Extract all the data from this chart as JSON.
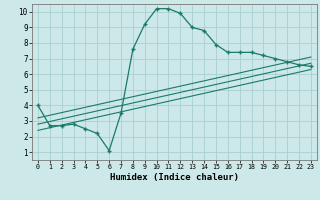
{
  "xlabel": "Humidex (Indice chaleur)",
  "bg_color": "#cce8e8",
  "grid_color": "#aacfcf",
  "line_color": "#1a7a6a",
  "xlim": [
    -0.5,
    23.5
  ],
  "ylim": [
    0.5,
    10.5
  ],
  "xticks": [
    0,
    1,
    2,
    3,
    4,
    5,
    6,
    7,
    8,
    9,
    10,
    11,
    12,
    13,
    14,
    15,
    16,
    17,
    18,
    19,
    20,
    21,
    22,
    23
  ],
  "yticks": [
    1,
    2,
    3,
    4,
    5,
    6,
    7,
    8,
    9,
    10
  ],
  "series1_x": [
    0,
    1,
    2,
    3,
    4,
    5,
    6,
    7,
    8,
    9,
    10,
    11,
    12,
    13,
    14,
    15,
    16,
    17,
    18,
    19,
    20,
    21,
    22,
    23
  ],
  "series1_y": [
    4.0,
    2.7,
    2.7,
    2.8,
    2.5,
    2.2,
    1.1,
    3.5,
    7.6,
    9.2,
    10.2,
    10.2,
    9.9,
    9.0,
    8.8,
    7.9,
    7.4,
    7.4,
    7.4,
    7.2,
    7.0,
    6.8,
    6.6,
    6.5
  ],
  "series2_x": [
    0,
    23
  ],
  "series2_y": [
    3.2,
    7.1
  ],
  "series3_x": [
    0,
    23
  ],
  "series3_y": [
    2.8,
    6.7
  ],
  "series4_x": [
    0,
    23
  ],
  "series4_y": [
    2.4,
    6.3
  ]
}
